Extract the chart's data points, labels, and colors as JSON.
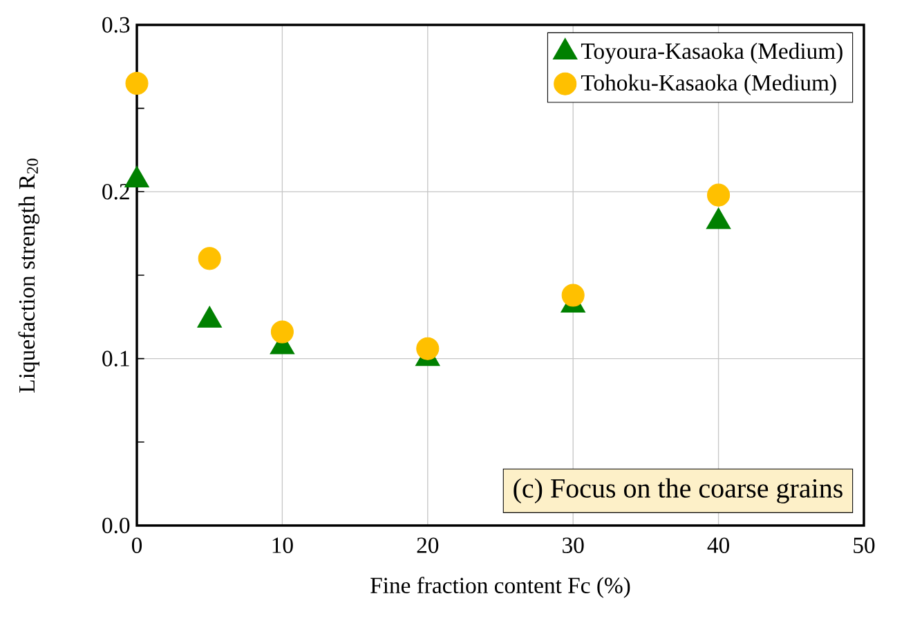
{
  "chart_data": {
    "type": "scatter",
    "xlabel": "Fine fraction content Fc (%)",
    "ylabel": "Liquefaction strength R$_{20}$",
    "x": [
      0,
      5,
      10,
      20,
      30,
      40
    ],
    "series": [
      {
        "name": "Toyoura-Kasaoka (Medium)",
        "color": "#008000",
        "marker": "triangle",
        "values": [
          0.207,
          0.123,
          0.107,
          0.1,
          0.132,
          0.182
        ]
      },
      {
        "name": "Tohoku-Kasaoka (Medium)",
        "color": "#ffc000",
        "marker": "circle",
        "values": [
          0.265,
          0.16,
          0.116,
          0.106,
          0.138,
          0.198
        ]
      }
    ],
    "xlim": [
      0,
      50
    ],
    "xticks": [
      0,
      10,
      20,
      30,
      40,
      50
    ],
    "ylim": [
      0,
      0.3
    ],
    "yticks": [
      {
        "value": 0,
        "label": "0.0"
      },
      {
        "value": 0.05,
        "label": null
      },
      0.1,
      {
        "value": 0.15,
        "label": null
      },
      0.2,
      {
        "value": 0.25,
        "label": null
      },
      0.3
    ],
    "grid": true,
    "legend": "top right",
    "annotations": [
      "(c) Focus on the coarse grains"
    ]
  }
}
